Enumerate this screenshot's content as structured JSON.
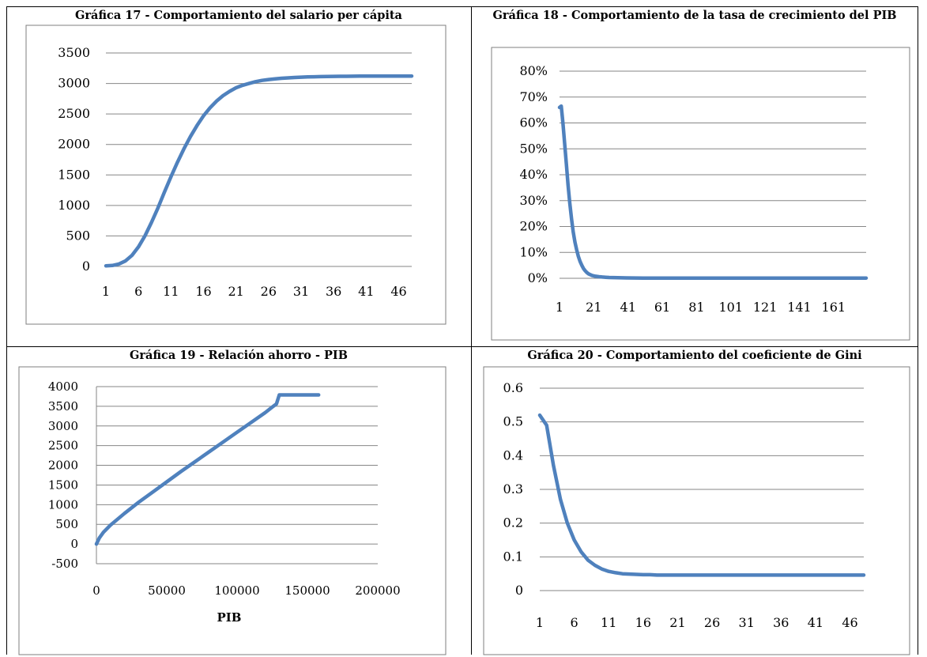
{
  "chart_data": [
    {
      "type": "line",
      "title": "Gráfica 17 - Comportamiento del salario  per cápita",
      "xlabel": "",
      "ylabel": "",
      "x_tick_labels": [
        "1",
        "6",
        "11",
        "16",
        "21",
        "26",
        "31",
        "36",
        "41",
        "46"
      ],
      "y_tick_labels": [
        "0",
        "500",
        "1000",
        "1500",
        "2000",
        "2500",
        "3000",
        "3500"
      ],
      "ylim": [
        0,
        3500
      ],
      "grid": true,
      "line_color": "#4F81BD",
      "x": [
        1,
        2,
        3,
        4,
        5,
        6,
        7,
        8,
        9,
        10,
        11,
        12,
        13,
        14,
        15,
        16,
        17,
        18,
        19,
        20,
        21,
        22,
        23,
        24,
        25,
        26,
        27,
        28,
        29,
        30,
        31,
        32,
        33,
        34,
        35,
        36,
        37,
        38,
        39,
        40,
        41,
        42,
        43,
        44,
        45,
        46,
        47,
        48
      ],
      "values": [
        10,
        15,
        40,
        90,
        180,
        320,
        500,
        720,
        960,
        1220,
        1470,
        1710,
        1930,
        2130,
        2310,
        2470,
        2600,
        2710,
        2800,
        2870,
        2930,
        2970,
        3000,
        3030,
        3050,
        3065,
        3075,
        3085,
        3092,
        3098,
        3103,
        3107,
        3110,
        3112,
        3114,
        3116,
        3117,
        3118,
        3119,
        3120,
        3120,
        3120,
        3121,
        3121,
        3121,
        3121,
        3121,
        3121
      ]
    },
    {
      "type": "line",
      "title": "Gráfica 18 - Comportamiento de la tasa de crecimiento del PIB",
      "xlabel": "",
      "ylabel": "",
      "x_tick_labels": [
        "1",
        "21",
        "41",
        "61",
        "81",
        "101",
        "121",
        "141",
        "161"
      ],
      "y_tick_labels": [
        "0%",
        "10%",
        "20%",
        "30%",
        "40%",
        "50%",
        "60%",
        "70%",
        "80%"
      ],
      "ylim": [
        0,
        0.8
      ],
      "grid": true,
      "line_color": "#4F81BD",
      "x": [
        1,
        2,
        3,
        4,
        5,
        6,
        7,
        8,
        9,
        10,
        11,
        12,
        13,
        14,
        15,
        16,
        17,
        18,
        20,
        22,
        24,
        26,
        28,
        30,
        35,
        40,
        50,
        60,
        80,
        100,
        120,
        140,
        160,
        180
      ],
      "values": [
        0.66,
        0.665,
        0.6,
        0.52,
        0.44,
        0.36,
        0.29,
        0.23,
        0.18,
        0.14,
        0.11,
        0.085,
        0.065,
        0.05,
        0.038,
        0.029,
        0.022,
        0.017,
        0.011,
        0.008,
        0.006,
        0.005,
        0.004,
        0.003,
        0.002,
        0.0015,
        0.001,
        0.001,
        0.001,
        0.001,
        0.001,
        0.001,
        0.001,
        0.001
      ]
    },
    {
      "type": "line",
      "title": "Gráfica 19 - Relación ahorro - PIB",
      "xlabel": "PIB",
      "ylabel": "",
      "x_tick_labels": [
        "0",
        "50000",
        "100000",
        "150000",
        "200000"
      ],
      "y_tick_labels": [
        "-500",
        "0",
        "500",
        "1000",
        "1500",
        "2000",
        "2500",
        "3000",
        "3500",
        "4000"
      ],
      "xlim": [
        0,
        200000
      ],
      "ylim": [
        -500,
        4000
      ],
      "grid": true,
      "line_color": "#4F81BD",
      "x": [
        0,
        2000,
        5000,
        10000,
        20000,
        30000,
        40000,
        50000,
        60000,
        70000,
        80000,
        90000,
        100000,
        110000,
        120000,
        125000,
        128000,
        130000,
        140000,
        150000,
        158000
      ],
      "values": [
        0,
        150,
        300,
        480,
        780,
        1060,
        1320,
        1580,
        1840,
        2090,
        2340,
        2590,
        2840,
        3090,
        3340,
        3480,
        3560,
        3790,
        3790,
        3790,
        3790
      ]
    },
    {
      "type": "line",
      "title": "Gráfica 20 - Comportamiento del coeficiente de Gini",
      "xlabel": "",
      "ylabel": "",
      "x_tick_labels": [
        "1",
        "6",
        "11",
        "16",
        "21",
        "26",
        "31",
        "36",
        "41",
        "46"
      ],
      "y_tick_labels": [
        "0",
        "0.1",
        "0.2",
        "0.3",
        "0.4",
        "0.5",
        "0.6"
      ],
      "ylim": [
        0,
        0.6
      ],
      "grid": true,
      "line_color": "#4F81BD",
      "x": [
        1,
        2,
        3,
        4,
        5,
        6,
        7,
        8,
        9,
        10,
        11,
        12,
        13,
        14,
        15,
        16,
        17,
        18,
        19,
        20,
        21,
        22,
        23,
        24,
        25,
        26,
        27,
        28,
        29,
        30,
        31,
        32,
        33,
        34,
        35,
        36,
        37,
        38,
        39,
        40,
        41,
        42,
        43,
        44,
        45,
        46,
        47,
        48
      ],
      "values": [
        0.52,
        0.49,
        0.37,
        0.27,
        0.2,
        0.15,
        0.115,
        0.09,
        0.075,
        0.064,
        0.057,
        0.053,
        0.05,
        0.049,
        0.048,
        0.047,
        0.047,
        0.046,
        0.046,
        0.046,
        0.046,
        0.046,
        0.046,
        0.046,
        0.046,
        0.046,
        0.046,
        0.046,
        0.046,
        0.046,
        0.046,
        0.046,
        0.046,
        0.046,
        0.046,
        0.046,
        0.046,
        0.046,
        0.046,
        0.046,
        0.046,
        0.046,
        0.046,
        0.046,
        0.046,
        0.046,
        0.046,
        0.046
      ]
    }
  ]
}
